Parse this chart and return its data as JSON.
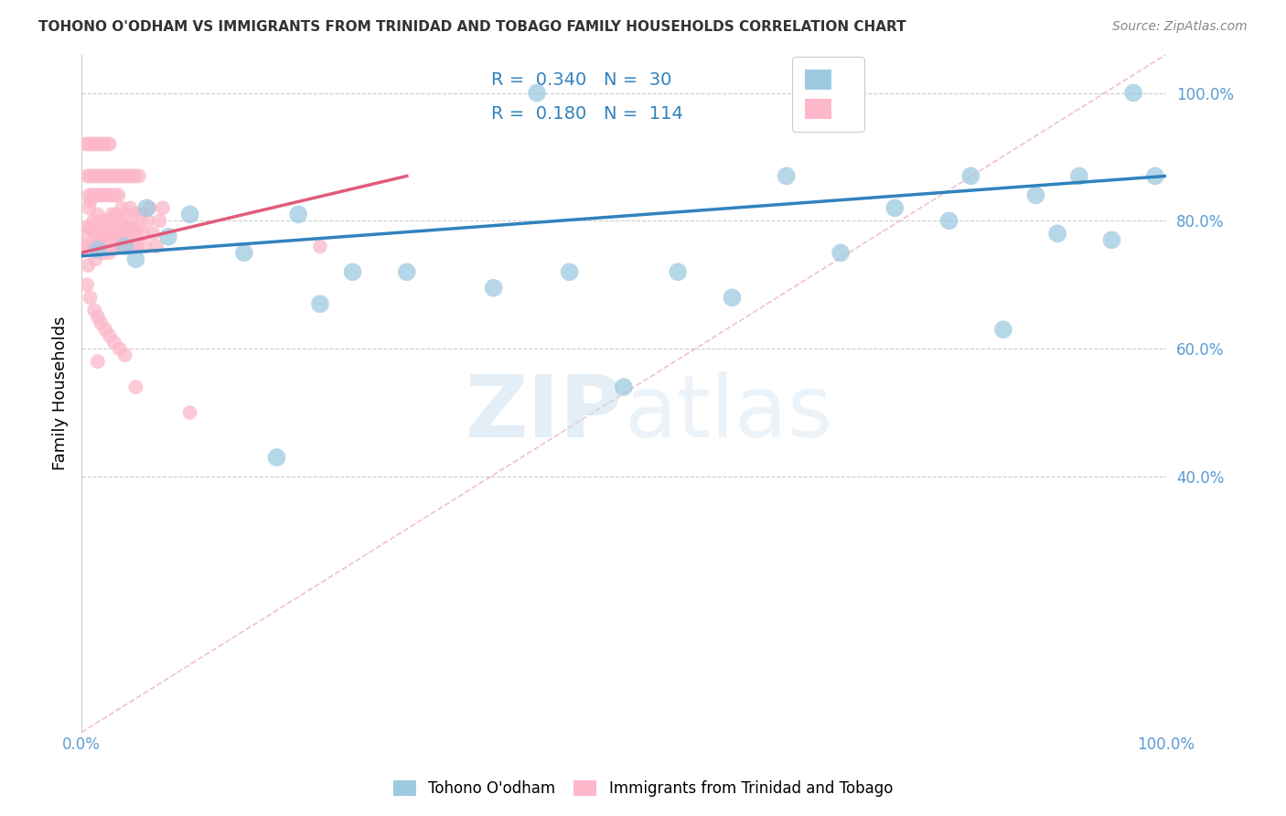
{
  "title": "TOHONO O'ODHAM VS IMMIGRANTS FROM TRINIDAD AND TOBAGO FAMILY HOUSEHOLDS CORRELATION CHART",
  "source": "Source: ZipAtlas.com",
  "ylabel": "Family Households",
  "legend_label1": "Tohono O'odham",
  "legend_label2": "Immigrants from Trinidad and Tobago",
  "R1": 0.34,
  "N1": 30,
  "R2": 0.18,
  "N2": 114,
  "color_blue": "#9ecae1",
  "color_pink": "#fcb8ca",
  "color_blue_line": "#3182bd",
  "color_pink_line": "#e05c7a",
  "color_pink_dashed": "#e8a0b0",
  "watermark_zip": "ZIP",
  "watermark_atlas": "atlas",
  "blue_x": [
    0.015,
    0.04,
    0.05,
    0.06,
    0.08,
    0.1,
    0.15,
    0.2,
    0.22,
    0.25,
    0.3,
    0.38,
    0.45,
    0.5,
    0.55,
    0.6,
    0.65,
    0.7,
    0.75,
    0.8,
    0.82,
    0.85,
    0.88,
    0.9,
    0.92,
    0.95,
    0.97,
    0.99,
    0.42,
    0.18
  ],
  "blue_y": [
    0.755,
    0.76,
    0.74,
    0.82,
    0.775,
    0.81,
    0.75,
    0.81,
    0.67,
    0.72,
    0.72,
    0.695,
    0.72,
    0.54,
    0.72,
    0.68,
    0.87,
    0.75,
    0.82,
    0.8,
    0.87,
    0.63,
    0.84,
    0.78,
    0.87,
    0.77,
    1.0,
    0.87,
    1.0,
    0.43
  ],
  "pink_x": [
    0.002,
    0.003,
    0.004,
    0.005,
    0.006,
    0.007,
    0.008,
    0.009,
    0.01,
    0.011,
    0.012,
    0.013,
    0.014,
    0.015,
    0.016,
    0.017,
    0.018,
    0.019,
    0.02,
    0.021,
    0.022,
    0.023,
    0.024,
    0.025,
    0.026,
    0.027,
    0.028,
    0.029,
    0.03,
    0.031,
    0.032,
    0.033,
    0.034,
    0.035,
    0.036,
    0.037,
    0.038,
    0.039,
    0.04,
    0.041,
    0.042,
    0.043,
    0.044,
    0.045,
    0.046,
    0.047,
    0.048,
    0.049,
    0.05,
    0.051,
    0.053,
    0.055,
    0.057,
    0.059,
    0.061,
    0.063,
    0.066,
    0.069,
    0.072,
    0.075,
    0.005,
    0.008,
    0.01,
    0.012,
    0.015,
    0.018,
    0.02,
    0.023,
    0.025,
    0.028,
    0.03,
    0.033,
    0.035,
    0.038,
    0.04,
    0.043,
    0.045,
    0.048,
    0.05,
    0.053,
    0.004,
    0.006,
    0.009,
    0.011,
    0.014,
    0.016,
    0.019,
    0.021,
    0.024,
    0.026,
    0.007,
    0.01,
    0.013,
    0.016,
    0.019,
    0.022,
    0.025,
    0.028,
    0.031,
    0.034,
    0.006,
    0.008,
    0.012,
    0.015,
    0.018,
    0.022,
    0.026,
    0.03,
    0.035,
    0.04,
    0.015,
    0.22,
    0.05,
    0.1
  ],
  "pink_y": [
    0.76,
    0.78,
    0.76,
    0.7,
    0.79,
    0.82,
    0.83,
    0.79,
    0.76,
    0.8,
    0.78,
    0.74,
    0.77,
    0.81,
    0.79,
    0.76,
    0.8,
    0.77,
    0.78,
    0.75,
    0.76,
    0.78,
    0.8,
    0.77,
    0.75,
    0.79,
    0.81,
    0.77,
    0.76,
    0.79,
    0.81,
    0.77,
    0.78,
    0.76,
    0.8,
    0.82,
    0.78,
    0.76,
    0.79,
    0.81,
    0.78,
    0.76,
    0.79,
    0.82,
    0.78,
    0.76,
    0.79,
    0.81,
    0.78,
    0.76,
    0.79,
    0.81,
    0.78,
    0.76,
    0.8,
    0.82,
    0.78,
    0.76,
    0.8,
    0.82,
    0.87,
    0.87,
    0.87,
    0.87,
    0.87,
    0.87,
    0.87,
    0.87,
    0.87,
    0.87,
    0.87,
    0.87,
    0.87,
    0.87,
    0.87,
    0.87,
    0.87,
    0.87,
    0.87,
    0.87,
    0.92,
    0.92,
    0.92,
    0.92,
    0.92,
    0.92,
    0.92,
    0.92,
    0.92,
    0.92,
    0.84,
    0.84,
    0.84,
    0.84,
    0.84,
    0.84,
    0.84,
    0.84,
    0.84,
    0.84,
    0.73,
    0.68,
    0.66,
    0.65,
    0.64,
    0.63,
    0.62,
    0.61,
    0.6,
    0.59,
    0.58,
    0.76,
    0.54,
    0.5
  ],
  "blue_line_x": [
    0.0,
    1.0
  ],
  "blue_line_y": [
    0.745,
    0.87
  ],
  "pink_line_x": [
    0.0,
    0.3
  ],
  "pink_line_y": [
    0.75,
    0.87
  ],
  "diag_line_x": [
    0.0,
    1.0
  ],
  "diag_line_y": [
    0.0,
    1.06
  ],
  "xlim": [
    0.0,
    1.0
  ],
  "ylim": [
    0.0,
    1.06
  ],
  "yticks": [
    0.4,
    0.6,
    0.8,
    1.0
  ],
  "ytick_labels": [
    "40.0%",
    "60.0%",
    "80.0%",
    "100.0%"
  ]
}
